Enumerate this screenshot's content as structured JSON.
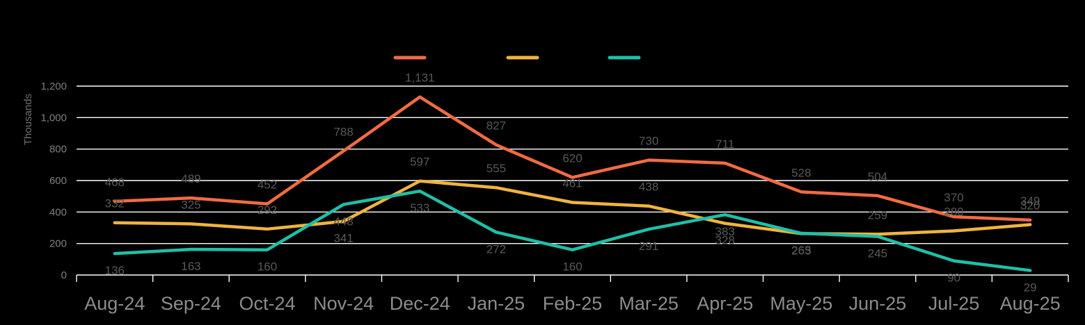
{
  "chart_data": {
    "type": "line",
    "title": "",
    "xlabel": "",
    "ylabel": "Thousands",
    "ylim": [
      0,
      1200
    ],
    "yticks": [
      "0",
      "200",
      "400",
      "600",
      "800",
      "1,000",
      "1,200"
    ],
    "categories": [
      "Aug-24",
      "Sep-24",
      "Oct-24",
      "Nov-24",
      "Dec-24",
      "Jan-25",
      "Feb-25",
      "Mar-25",
      "Apr-25",
      "May-25",
      "Jun-25",
      "Jul-25",
      "Aug-25"
    ],
    "grid": true,
    "legend_position": "top-center",
    "series": [
      {
        "color": "#f26b43",
        "values": [
          468,
          489,
          452,
          788,
          1131,
          827,
          620,
          730,
          711,
          528,
          504,
          370,
          349
        ],
        "labels": [
          "468",
          "489",
          "452",
          "788",
          "1,131",
          "827",
          "620",
          "730",
          "711",
          "528",
          "504",
          "370",
          "349"
        ]
      },
      {
        "color": "#f0b43c",
        "values": [
          332,
          325,
          292,
          341,
          597,
          555,
          461,
          438,
          328,
          263,
          259,
          280,
          320
        ],
        "labels": [
          "332",
          "325",
          "292",
          "341",
          "597",
          "555",
          "461",
          "438",
          "328",
          "263",
          "259",
          "280",
          "320"
        ]
      },
      {
        "color": "#1fbfa8",
        "values": [
          136,
          163,
          160,
          448,
          533,
          272,
          160,
          291,
          383,
          265,
          245,
          90,
          29
        ],
        "labels": [
          "136",
          "163",
          "160",
          "448",
          "533",
          "272",
          "160",
          "291",
          "383",
          "265",
          "245",
          "90",
          "29"
        ]
      }
    ]
  }
}
